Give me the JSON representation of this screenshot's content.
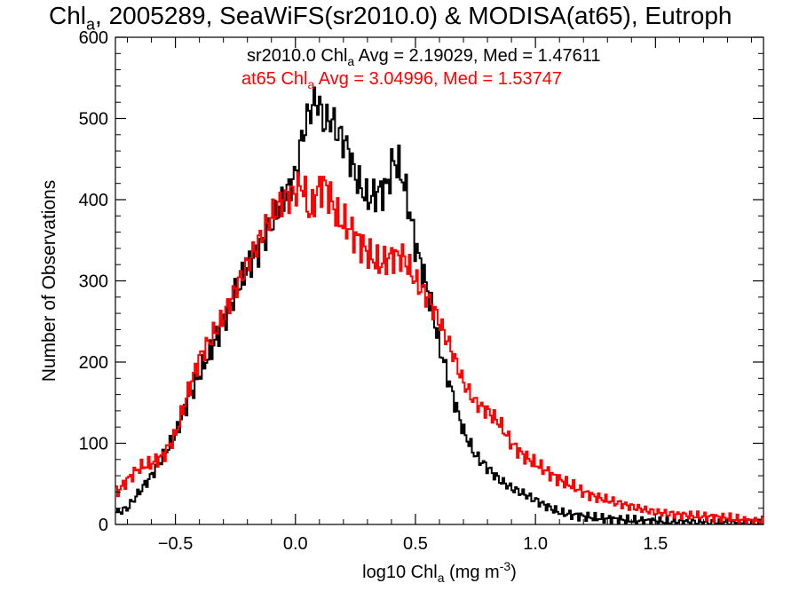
{
  "title": {
    "prefix": "Chl",
    "sub": "a",
    "suffix": ", 2005289, SeaWiFS(sr2010.0) & MODISA(at65), Eutroph"
  },
  "chart_data": {
    "type": "line",
    "xlabel": {
      "prefix": "log10 Chl",
      "sub": "a",
      "mid": " (mg m",
      "sup": "-3",
      "suffix": ")"
    },
    "ylabel": "Number of Observations",
    "xlim": [
      -0.75,
      1.95
    ],
    "ylim": [
      0,
      600
    ],
    "xticks": [
      -0.5,
      0.0,
      0.5,
      1.0,
      1.5
    ],
    "xtick_labels": [
      "−0.5",
      "0.0",
      "0.5",
      "1.0",
      "1.5"
    ],
    "yticks": [
      0,
      100,
      200,
      300,
      400,
      500,
      600
    ],
    "ytick_labels": [
      "0",
      "100",
      "200",
      "300",
      "400",
      "500",
      "600"
    ],
    "grid": false,
    "series": [
      {
        "name": "sr2010.0",
        "color": "#000000",
        "stats": {
          "prefix": "sr2010.0 Chl",
          "sub": "a",
          "suffix": " Avg = 2.19029, Med = 1.47611"
        },
        "x": [
          -0.74,
          -0.7,
          -0.65,
          -0.6,
          -0.55,
          -0.5,
          -0.45,
          -0.4,
          -0.35,
          -0.3,
          -0.25,
          -0.2,
          -0.15,
          -0.1,
          -0.05,
          0.0,
          0.03,
          0.06,
          0.09,
          0.12,
          0.15,
          0.18,
          0.21,
          0.25,
          0.3,
          0.35,
          0.38,
          0.41,
          0.44,
          0.47,
          0.5,
          0.55,
          0.6,
          0.65,
          0.7,
          0.75,
          0.8,
          0.85,
          0.9,
          0.95,
          1.0,
          1.05,
          1.1,
          1.15,
          1.2,
          1.25,
          1.3,
          1.4,
          1.5,
          1.6,
          1.7,
          1.8,
          1.9
        ],
        "y": [
          15,
          20,
          40,
          60,
          85,
          110,
          150,
          185,
          215,
          250,
          285,
          315,
          340,
          370,
          400,
          430,
          480,
          510,
          525,
          495,
          500,
          480,
          470,
          430,
          400,
          410,
          415,
          450,
          435,
          395,
          345,
          290,
          220,
          165,
          115,
          85,
          70,
          55,
          45,
          38,
          30,
          22,
          15,
          12,
          10,
          8,
          7,
          5,
          4,
          3,
          3,
          2,
          1
        ]
      },
      {
        "name": "at65",
        "color": "#ff0000",
        "stats": {
          "prefix": "at65 Chl",
          "sub": "a",
          "suffix": " Avg = 3.04996, Med = 1.53747"
        },
        "x": [
          -0.74,
          -0.7,
          -0.65,
          -0.6,
          -0.55,
          -0.5,
          -0.45,
          -0.4,
          -0.35,
          -0.3,
          -0.25,
          -0.2,
          -0.15,
          -0.1,
          -0.05,
          0.0,
          0.03,
          0.06,
          0.09,
          0.12,
          0.15,
          0.18,
          0.21,
          0.25,
          0.3,
          0.35,
          0.4,
          0.45,
          0.5,
          0.55,
          0.6,
          0.65,
          0.7,
          0.75,
          0.8,
          0.85,
          0.9,
          0.95,
          1.0,
          1.05,
          1.1,
          1.15,
          1.2,
          1.25,
          1.3,
          1.4,
          1.5,
          1.6,
          1.7,
          1.8,
          1.9
        ],
        "y": [
          40,
          55,
          70,
          75,
          85,
          110,
          160,
          205,
          230,
          255,
          290,
          320,
          350,
          380,
          400,
          410,
          420,
          380,
          410,
          420,
          400,
          375,
          370,
          355,
          335,
          320,
          330,
          330,
          300,
          280,
          250,
          215,
          175,
          150,
          140,
          125,
          100,
          85,
          75,
          65,
          55,
          48,
          40,
          34,
          30,
          22,
          15,
          12,
          10,
          8,
          4
        ]
      }
    ]
  }
}
